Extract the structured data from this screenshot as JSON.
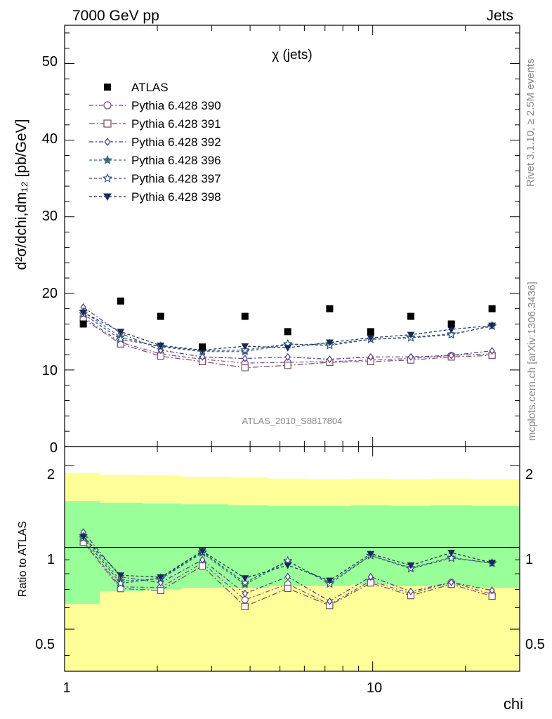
{
  "header": {
    "left": "7000 GeV pp",
    "right": "Jets"
  },
  "side_labels": {
    "rivet": "Rivet 3.1.10, ≥ 2.5M events",
    "mcplots": "mcplots.cern.ch [arXiv:1306.3436]"
  },
  "watermark": "ATLAS_2010_S8817804",
  "chart_data": {
    "type": "scatter",
    "title": "χ (jets)",
    "xlabel": "chi",
    "ylabel_main": "d²σ/dchi,dm₁₂ [pb/GeV]",
    "ylabel_ratio": "Ratio to ATLAS",
    "x_scale": "log",
    "xlim": [
      1,
      30
    ],
    "ylim_main": [
      0,
      55
    ],
    "ylim_ratio": [
      0.35,
      2.35
    ],
    "x_tick_labels": [
      "1",
      "10"
    ],
    "y_tick_labels_main": [
      "0",
      "10",
      "20",
      "30",
      "40",
      "50"
    ],
    "y_tick_labels_ratio": [
      "0.5",
      "1",
      "2"
    ],
    "x": [
      1.15,
      1.52,
      2.05,
      2.8,
      3.85,
      5.3,
      7.25,
      9.85,
      13.3,
      18.0,
      24.4
    ],
    "data": {
      "name": "ATLAS",
      "values": [
        16,
        19,
        17,
        13,
        17,
        15,
        18,
        15,
        17,
        16,
        18
      ]
    },
    "band_x_edges": [
      1.0,
      1.3,
      1.8,
      2.4,
      3.4,
      4.6,
      6.2,
      8.5,
      11.5,
      15.5,
      21.0,
      30.0
    ],
    "ratio_bands": {
      "inner_lo": [
        0.62,
        0.69,
        0.7,
        0.71,
        0.71,
        0.72,
        0.72,
        0.73,
        0.72,
        0.72,
        0.71
      ],
      "inner_hi": [
        1.48,
        1.46,
        1.45,
        1.44,
        1.43,
        1.42,
        1.42,
        1.43,
        1.42,
        1.43,
        1.42
      ],
      "outer_lo": [
        0.35,
        0.35,
        0.35,
        0.35,
        0.35,
        0.35,
        0.35,
        0.35,
        0.35,
        0.35,
        0.35
      ],
      "outer_hi": [
        1.88,
        1.85,
        1.84,
        1.82,
        1.81,
        1.79,
        1.78,
        1.79,
        1.78,
        1.79,
        1.78
      ]
    },
    "series": [
      {
        "name": "Pythia 6.428 390",
        "color": "#7a4c8c",
        "marker": "circle",
        "values": [
          16.9,
          13.6,
          12.1,
          11.4,
          10.9,
          11.0,
          11.1,
          11.3,
          11.5,
          11.9,
          12.1
        ]
      },
      {
        "name": "Pythia 6.428 391",
        "color": "#7a4a5c",
        "marker": "square",
        "values": [
          16.7,
          13.4,
          11.8,
          11.1,
          10.3,
          10.6,
          11.0,
          11.1,
          11.3,
          11.7,
          11.9
        ]
      },
      {
        "name": "Pythia 6.428 392",
        "color": "#4a3a8c",
        "marker": "diamond",
        "values": [
          18.2,
          14.8,
          12.6,
          11.7,
          11.5,
          11.7,
          11.4,
          11.7,
          11.7,
          11.9,
          12.5
        ]
      },
      {
        "name": "Pythia 6.428 396",
        "color": "#3f6a80",
        "marker": "star",
        "values": [
          17.6,
          14.3,
          13.0,
          12.4,
          12.4,
          13.3,
          13.4,
          14.0,
          14.3,
          14.7,
          15.7
        ]
      },
      {
        "name": "Pythia 6.428 397",
        "color": "#2f4f70",
        "marker": "star-open",
        "values": [
          17.3,
          14.0,
          13.1,
          12.5,
          12.6,
          13.4,
          13.2,
          14.0,
          14.2,
          14.6,
          15.8
        ]
      },
      {
        "name": "Pythia 6.428 398",
        "color": "#1a2a5a",
        "marker": "triangle-down",
        "values": [
          17.5,
          15.0,
          13.2,
          12.6,
          13.1,
          12.9,
          13.6,
          14.2,
          14.6,
          15.3,
          15.8
        ]
      }
    ]
  }
}
